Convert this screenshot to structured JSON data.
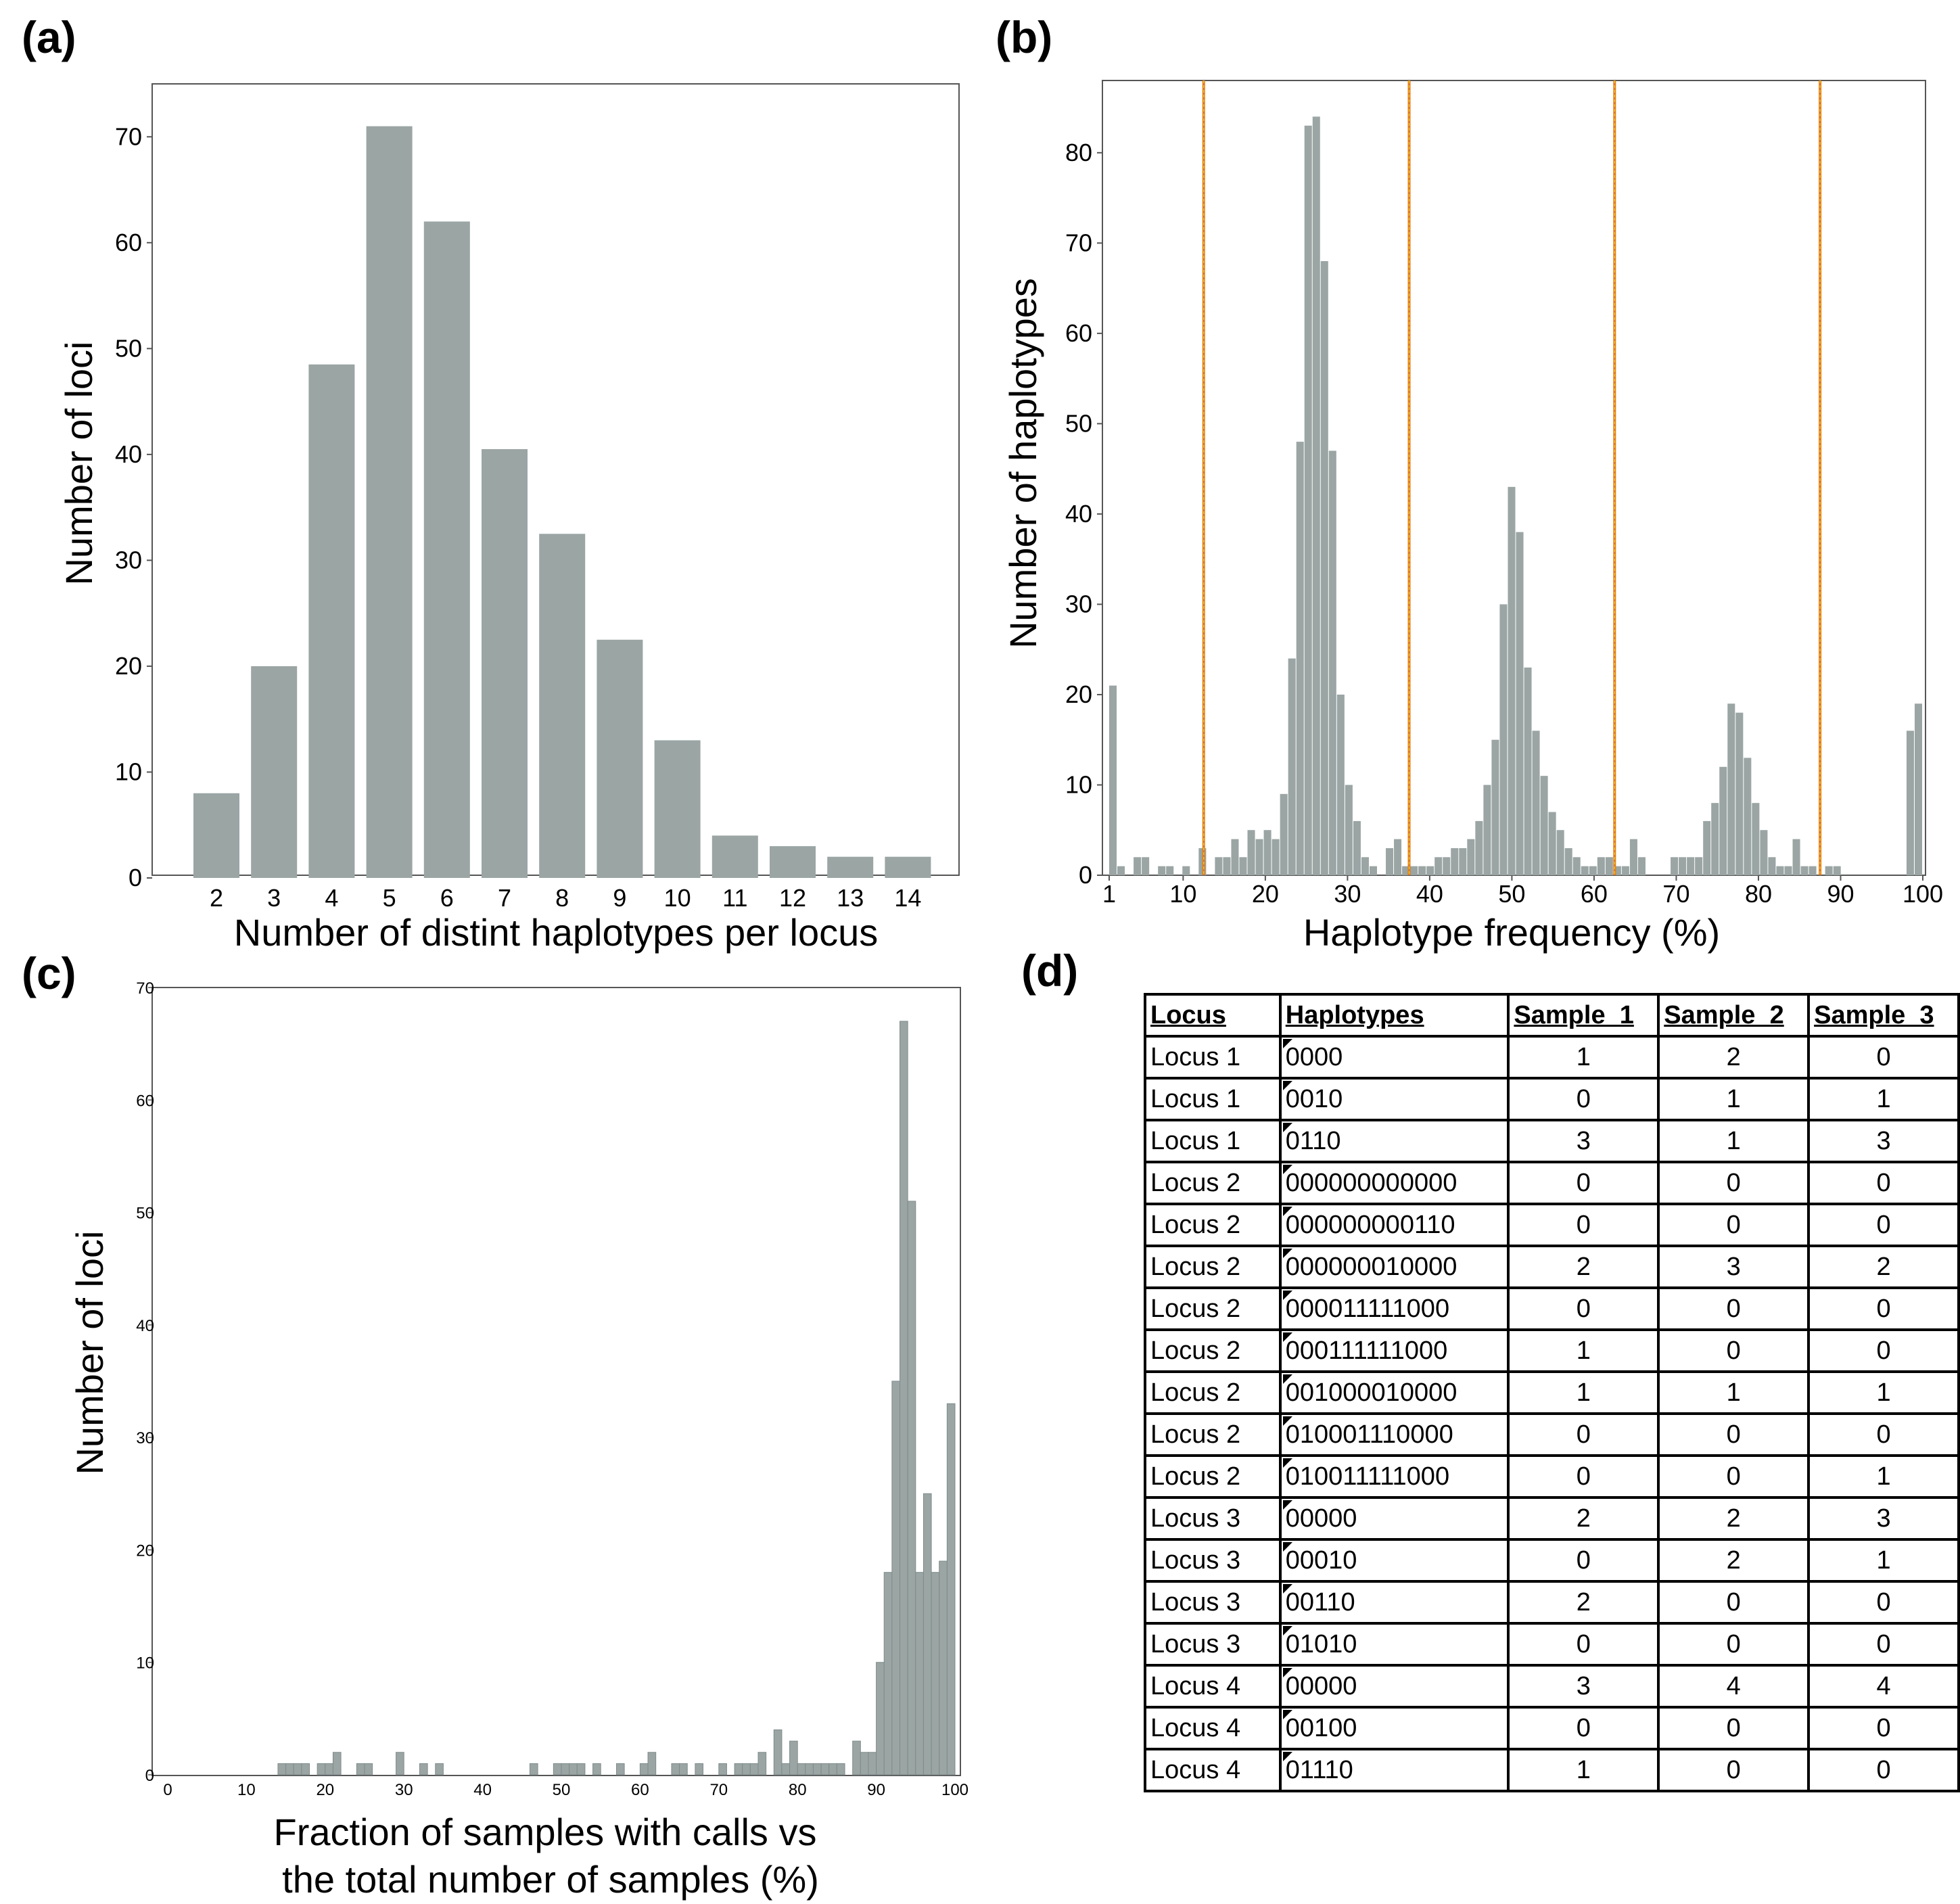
{
  "colors": {
    "bar": "#9aa5a4",
    "frame": "#555555",
    "vline_orange": "#e07b1f",
    "vline_yellow": "#f2c21a"
  },
  "panels": {
    "a": "(a)",
    "b": "(b)",
    "c": "(c)",
    "d": "(d)"
  },
  "chart_data": [
    {
      "id": "a",
      "type": "bar",
      "categories": [
        "2",
        "3",
        "4",
        "5",
        "6",
        "7",
        "8",
        "9",
        "10",
        "11",
        "12",
        "13",
        "14"
      ],
      "values": [
        8,
        20,
        48.5,
        71,
        62,
        40.5,
        32.5,
        22.5,
        13,
        4,
        3,
        2,
        2
      ],
      "xlabel": "Number of distint haplotypes per locus",
      "ylabel": "Number of loci",
      "ylim": [
        0,
        75
      ],
      "yticks": [
        "0",
        "10",
        "20",
        "30",
        "40",
        "50",
        "60",
        "70"
      ],
      "grid": false
    },
    {
      "id": "b",
      "type": "bar",
      "histogram": true,
      "x": [
        1,
        2,
        3,
        4,
        5,
        6,
        7,
        8,
        9,
        10,
        11,
        12,
        13,
        14,
        15,
        16,
        17,
        18,
        19,
        20,
        21,
        22,
        23,
        24,
        25,
        26,
        27,
        28,
        29,
        30,
        31,
        32,
        33,
        34,
        35,
        36,
        37,
        38,
        39,
        40,
        41,
        42,
        43,
        44,
        45,
        46,
        47,
        48,
        49,
        50,
        51,
        52,
        53,
        54,
        55,
        56,
        57,
        58,
        59,
        60,
        61,
        62,
        63,
        64,
        65,
        66,
        67,
        68,
        69,
        70,
        71,
        72,
        73,
        74,
        75,
        76,
        77,
        78,
        79,
        80,
        81,
        82,
        83,
        84,
        85,
        86,
        87,
        88,
        89,
        90,
        91,
        92,
        93,
        94,
        95,
        96,
        97,
        98,
        99,
        100
      ],
      "values": [
        21,
        1,
        0,
        2,
        2,
        0,
        1,
        1,
        0,
        1,
        0,
        3,
        0,
        2,
        2,
        4,
        2,
        5,
        4,
        5,
        4,
        9,
        24,
        48,
        83,
        84,
        68,
        47,
        20,
        10,
        6,
        2,
        1,
        0,
        3,
        4,
        1,
        1,
        1,
        1,
        2,
        2,
        3,
        3,
        4,
        6,
        10,
        15,
        30,
        43,
        38,
        23,
        16,
        11,
        7,
        5,
        3,
        2,
        1,
        1,
        2,
        2,
        1,
        1,
        4,
        2,
        0,
        0,
        0,
        2,
        2,
        2,
        2,
        6,
        8,
        12,
        19,
        18,
        13,
        8,
        5,
        2,
        1,
        1,
        4,
        1,
        1,
        0,
        1,
        1,
        0,
        0,
        0,
        0,
        0,
        0,
        0,
        0,
        16,
        19
      ],
      "xlabel": "Haplotype frequency (%)",
      "ylabel": "Number of haplotypes",
      "xlim": [
        0,
        100
      ],
      "ylim": [
        0,
        88
      ],
      "xticks": [
        "1",
        "10",
        "20",
        "30",
        "40",
        "50",
        "60",
        "70",
        "80",
        "90",
        "100"
      ],
      "yticks": [
        "0",
        "10",
        "20",
        "30",
        "40",
        "50",
        "60",
        "70",
        "80"
      ],
      "vlines": [
        12.5,
        37.5,
        62.5,
        87.5
      ],
      "grid": false
    },
    {
      "id": "c",
      "type": "bar",
      "histogram": true,
      "x": [
        15,
        16,
        17,
        18,
        20,
        21,
        22,
        25,
        26,
        30,
        33,
        35,
        47,
        50,
        51,
        52,
        53,
        55,
        58,
        61,
        62,
        65,
        66,
        68,
        71,
        73,
        74,
        75,
        76,
        78,
        79,
        80,
        81,
        82,
        83,
        84,
        85,
        86,
        88,
        89,
        90,
        91,
        92,
        93,
        94,
        95,
        96,
        97,
        98,
        99,
        100
      ],
      "values": [
        1,
        1,
        1,
        1,
        1,
        1,
        2,
        1,
        1,
        2,
        1,
        1,
        1,
        1,
        1,
        1,
        1,
        1,
        1,
        1,
        2,
        1,
        1,
        1,
        1,
        1,
        1,
        1,
        2,
        4,
        1,
        3,
        1,
        1,
        1,
        1,
        1,
        1,
        3,
        2,
        2,
        10,
        18,
        35,
        67,
        51,
        18,
        25,
        18,
        19,
        33
      ],
      "xlabel": "Fraction of samples with calls vs",
      "xlabel2": "the total number of samples (%)",
      "ylabel": "Number of loci",
      "xlim": [
        0,
        100
      ],
      "ylim": [
        0,
        70
      ],
      "xticks": [
        "0",
        "10",
        "20",
        "30",
        "40",
        "50",
        "60",
        "70",
        "80",
        "90",
        "100"
      ],
      "yticks": [
        "0",
        "10",
        "20",
        "30",
        "40",
        "50",
        "60",
        "70"
      ],
      "grid": false
    },
    {
      "id": "d",
      "type": "table",
      "columns": [
        "Locus",
        "Haplotypes",
        "Sample_1",
        "Sample_2",
        "Sample_3"
      ],
      "rows": [
        [
          "Locus 1",
          "0000",
          "1",
          "2",
          "0"
        ],
        [
          "Locus 1",
          "0010",
          "0",
          "1",
          "1"
        ],
        [
          "Locus 1",
          "0110",
          "3",
          "1",
          "3"
        ],
        [
          "Locus 2",
          "000000000000",
          "0",
          "0",
          "0"
        ],
        [
          "Locus 2",
          "000000000110",
          "0",
          "0",
          "0"
        ],
        [
          "Locus 2",
          "000000010000",
          "2",
          "3",
          "2"
        ],
        [
          "Locus 2",
          "000011111000",
          "0",
          "0",
          "0"
        ],
        [
          "Locus 2",
          "000111111000",
          "1",
          "0",
          "0"
        ],
        [
          "Locus 2",
          "001000010000",
          "1",
          "1",
          "1"
        ],
        [
          "Locus 2",
          "010001110000",
          "0",
          "0",
          "0"
        ],
        [
          "Locus 2",
          "010011111000",
          "0",
          "0",
          "1"
        ],
        [
          "Locus 3",
          "00000",
          "2",
          "2",
          "3"
        ],
        [
          "Locus 3",
          "00010",
          "0",
          "2",
          "1"
        ],
        [
          "Locus 3",
          "00110",
          "2",
          "0",
          "0"
        ],
        [
          "Locus 3",
          "01010",
          "0",
          "0",
          "0"
        ],
        [
          "Locus 4",
          "00000",
          "3",
          "4",
          "4"
        ],
        [
          "Locus 4",
          "00100",
          "0",
          "0",
          "0"
        ],
        [
          "Locus 4",
          "01110",
          "1",
          "0",
          "0"
        ]
      ]
    }
  ]
}
